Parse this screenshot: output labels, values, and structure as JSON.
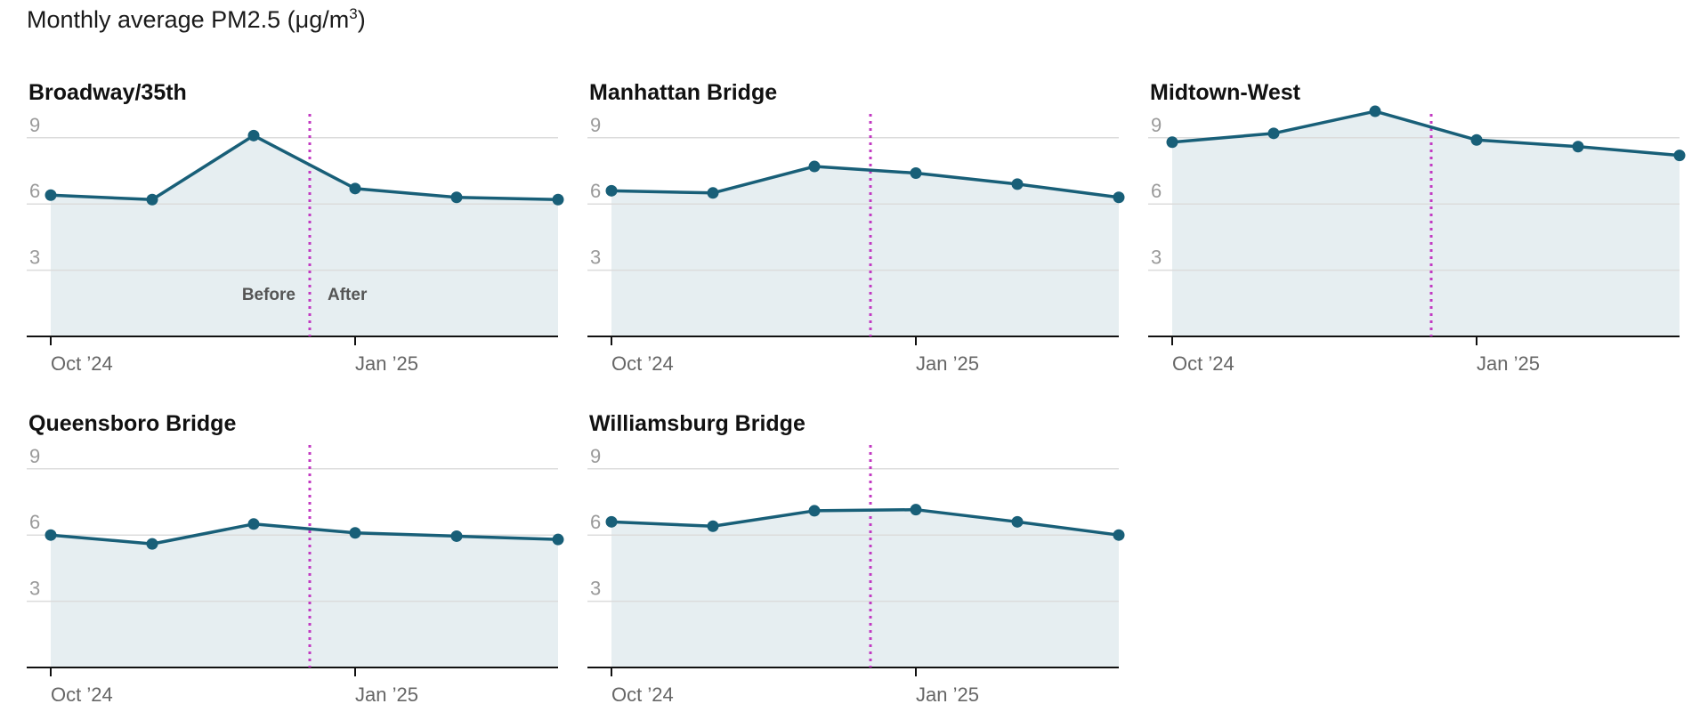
{
  "title_prefix": "Monthly average PM2.5 (μg/m",
  "title_sup": "3",
  "title_suffix": ")",
  "colors": {
    "line": "#185f78",
    "area": "#e6eef1",
    "grid": "#dcdcdc",
    "divider": "#c23ac2",
    "axis": "#111111"
  },
  "chart_data": [
    {
      "type": "area",
      "title": "Broadway/35th",
      "x": [
        "2024-10",
        "2024-11",
        "2024-12",
        "2025-01",
        "2025-02",
        "2025-03"
      ],
      "y": [
        6.4,
        6.2,
        9.1,
        6.7,
        6.3,
        6.2
      ],
      "ylim": [
        0,
        10
      ],
      "yticks": [
        3,
        6,
        9
      ],
      "xtick_labels": [
        "Oct ’24",
        "Jan ’25"
      ],
      "divider_x": "2024-12-15",
      "annotations": [
        "Before",
        "After"
      ],
      "grid": true
    },
    {
      "type": "area",
      "title": "Manhattan Bridge",
      "x": [
        "2024-10",
        "2024-11",
        "2024-12",
        "2025-01",
        "2025-02",
        "2025-03"
      ],
      "y": [
        6.6,
        6.5,
        7.7,
        7.4,
        6.9,
        6.3
      ],
      "ylim": [
        0,
        10
      ],
      "yticks": [
        3,
        6,
        9
      ],
      "xtick_labels": [
        "Oct ’24",
        "Jan ’25"
      ],
      "divider_x": "2024-12-15",
      "grid": true
    },
    {
      "type": "area",
      "title": "Midtown-West",
      "x": [
        "2024-10",
        "2024-11",
        "2024-12",
        "2025-01",
        "2025-02",
        "2025-03"
      ],
      "y": [
        8.8,
        9.2,
        10.2,
        8.9,
        8.6,
        8.2
      ],
      "ylim": [
        0,
        10
      ],
      "yticks": [
        3,
        6,
        9
      ],
      "xtick_labels": [
        "Oct ’24",
        "Jan ’25"
      ],
      "divider_x": "2024-12-15",
      "grid": true
    },
    {
      "type": "area",
      "title": "Queensboro Bridge",
      "x": [
        "2024-10",
        "2024-11",
        "2024-12",
        "2025-01",
        "2025-02",
        "2025-03"
      ],
      "y": [
        6.0,
        5.6,
        6.5,
        6.1,
        5.95,
        5.8
      ],
      "ylim": [
        0,
        10
      ],
      "yticks": [
        3,
        6,
        9
      ],
      "xtick_labels": [
        "Oct ’24",
        "Jan ’25"
      ],
      "divider_x": "2024-12-15",
      "grid": true
    },
    {
      "type": "area",
      "title": "Williamsburg Bridge",
      "x": [
        "2024-10",
        "2024-11",
        "2024-12",
        "2025-01",
        "2025-02",
        "2025-03"
      ],
      "y": [
        6.6,
        6.4,
        7.1,
        7.15,
        6.6,
        6.0
      ],
      "ylim": [
        0,
        10
      ],
      "yticks": [
        3,
        6,
        9
      ],
      "xtick_labels": [
        "Oct ’24",
        "Jan ’25"
      ],
      "divider_x": "2024-12-15",
      "grid": true
    }
  ]
}
